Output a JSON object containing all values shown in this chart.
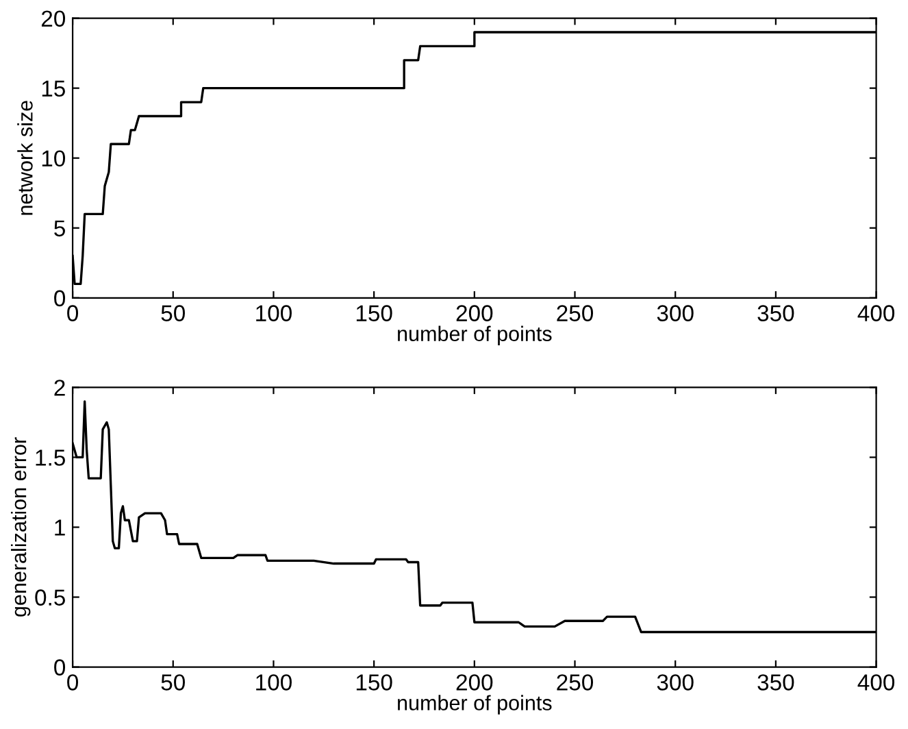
{
  "chart_data": [
    {
      "type": "line",
      "xlabel": "number of points",
      "ylabel": "network size",
      "xlim": [
        0,
        400
      ],
      "ylim": [
        0,
        20
      ],
      "xticks": [
        0,
        50,
        100,
        150,
        200,
        250,
        300,
        350,
        400
      ],
      "yticks": [
        0,
        5,
        10,
        15,
        20
      ],
      "grid": false,
      "legend": false,
      "series": [
        {
          "color": "#000000",
          "x": [
            0,
            1,
            4,
            5,
            6,
            15,
            16,
            17,
            18,
            19,
            28,
            29,
            31,
            32,
            33,
            54,
            54,
            64,
            65,
            165,
            165,
            172,
            173,
            200,
            200,
            400
          ],
          "values": [
            3,
            1,
            1,
            3,
            6,
            6,
            8,
            8.5,
            9,
            11,
            11,
            12,
            12,
            12.5,
            13,
            13,
            14,
            14,
            15,
            15,
            17,
            17,
            18,
            18,
            19,
            19
          ]
        }
      ]
    },
    {
      "type": "line",
      "xlabel": "number of points",
      "ylabel": "generalization error",
      "xlim": [
        0,
        400
      ],
      "ylim": [
        0,
        2
      ],
      "xticks": [
        0,
        50,
        100,
        150,
        200,
        250,
        300,
        350,
        400
      ],
      "yticks": [
        0,
        0.5,
        1,
        1.5,
        2
      ],
      "grid": false,
      "legend": false,
      "series": [
        {
          "color": "#000000",
          "x": [
            0,
            2,
            5,
            6,
            7,
            8,
            14,
            15,
            17,
            18,
            19,
            20,
            21,
            23,
            24,
            25,
            26,
            28,
            30,
            32,
            33,
            36,
            44,
            46,
            47,
            52,
            53,
            62,
            64,
            80,
            82,
            96,
            97,
            120,
            130,
            150,
            151,
            166,
            167,
            172,
            173,
            183,
            184,
            199,
            200,
            222,
            225,
            240,
            245,
            264,
            266,
            280,
            283,
            400
          ],
          "values": [
            1.6,
            1.5,
            1.5,
            1.9,
            1.55,
            1.35,
            1.35,
            1.7,
            1.75,
            1.7,
            1.3,
            0.9,
            0.85,
            0.85,
            1.1,
            1.15,
            1.05,
            1.05,
            0.9,
            0.9,
            1.07,
            1.1,
            1.1,
            1.05,
            0.95,
            0.95,
            0.88,
            0.88,
            0.78,
            0.78,
            0.8,
            0.8,
            0.76,
            0.76,
            0.74,
            0.74,
            0.77,
            0.77,
            0.75,
            0.75,
            0.44,
            0.44,
            0.46,
            0.46,
            0.32,
            0.32,
            0.29,
            0.29,
            0.33,
            0.33,
            0.36,
            0.36,
            0.25,
            0.25
          ]
        }
      ]
    }
  ]
}
